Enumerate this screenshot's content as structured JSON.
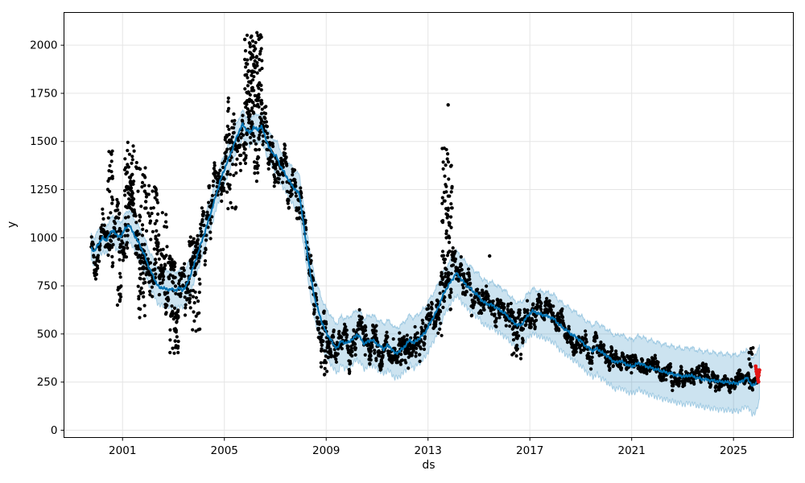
{
  "figure": {
    "xlabel": "ds",
    "ylabel": "y",
    "colors": {
      "background": "#ffffff",
      "observed_points": "#000000",
      "forecast_line": "#0072B2",
      "uncertainty_fill": "rgba(0,114,178,0.2)",
      "uncertainty_edge": "rgba(0,114,178,0.28)",
      "anomaly_points": "#e31515",
      "grid": "#e5e5e5",
      "spine": "#000000"
    }
  },
  "chart_data": {
    "type": "line",
    "description": "Prophet-style time-series forecast plot: black scatter of observed daily values y over dates ds, dark-blue forecast line, light-blue uncertainty interval, red anomaly points at the series end (~2026).",
    "title": "",
    "xlabel": "ds",
    "ylabel": "y",
    "grid": true,
    "legend": "none",
    "xlim": [
      1998.7,
      2027.35
    ],
    "ylim": [
      -38,
      2170
    ],
    "x_ticks": [
      2001,
      2005,
      2009,
      2013,
      2017,
      2021,
      2025
    ],
    "y_ticks": [
      0,
      250,
      500,
      750,
      1000,
      1250,
      1500,
      1750,
      2000
    ],
    "forecast_line": [
      [
        1999.77,
        945
      ],
      [
        1999.9,
        930
      ],
      [
        2000.05,
        965
      ],
      [
        2000.2,
        1000
      ],
      [
        2000.35,
        985
      ],
      [
        2000.5,
        1020
      ],
      [
        2000.65,
        1040
      ],
      [
        2000.8,
        1005
      ],
      [
        2000.95,
        1010
      ],
      [
        2001.1,
        1045
      ],
      [
        2001.25,
        1068
      ],
      [
        2001.4,
        1030
      ],
      [
        2001.55,
        995
      ],
      [
        2001.7,
        955
      ],
      [
        2001.85,
        915
      ],
      [
        2002.0,
        858
      ],
      [
        2002.15,
        815
      ],
      [
        2002.3,
        772
      ],
      [
        2002.45,
        738
      ],
      [
        2002.6,
        742
      ],
      [
        2002.75,
        728
      ],
      [
        2002.9,
        735
      ],
      [
        2003.05,
        725
      ],
      [
        2003.2,
        738
      ],
      [
        2003.35,
        728
      ],
      [
        2003.5,
        748
      ],
      [
        2003.65,
        800
      ],
      [
        2003.8,
        855
      ],
      [
        2003.95,
        915
      ],
      [
        2004.1,
        975
      ],
      [
        2004.25,
        1035
      ],
      [
        2004.4,
        1100
      ],
      [
        2004.55,
        1165
      ],
      [
        2004.7,
        1235
      ],
      [
        2004.85,
        1300
      ],
      [
        2005.0,
        1355
      ],
      [
        2005.15,
        1405
      ],
      [
        2005.3,
        1455
      ],
      [
        2005.45,
        1510
      ],
      [
        2005.6,
        1560
      ],
      [
        2005.72,
        1588
      ],
      [
        2005.85,
        1565
      ],
      [
        2006.0,
        1542
      ],
      [
        2006.15,
        1575
      ],
      [
        2006.3,
        1558
      ],
      [
        2006.45,
        1580
      ],
      [
        2006.6,
        1525
      ],
      [
        2006.75,
        1470
      ],
      [
        2006.9,
        1440
      ],
      [
        2007.05,
        1420
      ],
      [
        2007.2,
        1372
      ],
      [
        2007.35,
        1338
      ],
      [
        2007.5,
        1305
      ],
      [
        2007.65,
        1272
      ],
      [
        2007.8,
        1248
      ],
      [
        2007.95,
        1225
      ],
      [
        2008.1,
        1080
      ],
      [
        2008.25,
        930
      ],
      [
        2008.4,
        790
      ],
      [
        2008.55,
        685
      ],
      [
        2008.7,
        615
      ],
      [
        2008.85,
        555
      ],
      [
        2009.0,
        505
      ],
      [
        2009.15,
        478
      ],
      [
        2009.3,
        440
      ],
      [
        2009.45,
        428
      ],
      [
        2009.6,
        468
      ],
      [
        2009.75,
        448
      ],
      [
        2009.9,
        462
      ],
      [
        2010.05,
        472
      ],
      [
        2010.2,
        498
      ],
      [
        2010.35,
        478
      ],
      [
        2010.5,
        448
      ],
      [
        2010.65,
        462
      ],
      [
        2010.8,
        470
      ],
      [
        2010.95,
        452
      ],
      [
        2011.1,
        438
      ],
      [
        2011.25,
        422
      ],
      [
        2011.4,
        440
      ],
      [
        2011.55,
        428
      ],
      [
        2011.7,
        398
      ],
      [
        2011.85,
        408
      ],
      [
        2012.0,
        422
      ],
      [
        2012.15,
        448
      ],
      [
        2012.3,
        468
      ],
      [
        2012.45,
        452
      ],
      [
        2012.6,
        472
      ],
      [
        2012.75,
        488
      ],
      [
        2012.9,
        512
      ],
      [
        2013.05,
        548
      ],
      [
        2013.2,
        585
      ],
      [
        2013.35,
        622
      ],
      [
        2013.5,
        672
      ],
      [
        2013.65,
        718
      ],
      [
        2013.8,
        752
      ],
      [
        2013.95,
        782
      ],
      [
        2014.1,
        815
      ],
      [
        2014.25,
        795
      ],
      [
        2014.4,
        768
      ],
      [
        2014.55,
        748
      ],
      [
        2014.7,
        730
      ],
      [
        2014.85,
        712
      ],
      [
        2015.0,
        695
      ],
      [
        2015.15,
        668
      ],
      [
        2015.3,
        658
      ],
      [
        2015.45,
        652
      ],
      [
        2015.6,
        645
      ],
      [
        2015.75,
        628
      ],
      [
        2015.9,
        618
      ],
      [
        2016.05,
        602
      ],
      [
        2016.2,
        582
      ],
      [
        2016.35,
        560
      ],
      [
        2016.5,
        548
      ],
      [
        2016.65,
        545
      ],
      [
        2016.8,
        572
      ],
      [
        2016.95,
        600
      ],
      [
        2017.1,
        618
      ],
      [
        2017.25,
        612
      ],
      [
        2017.4,
        602
      ],
      [
        2017.55,
        598
      ],
      [
        2017.7,
        592
      ],
      [
        2017.85,
        585
      ],
      [
        2018.0,
        572
      ],
      [
        2018.15,
        548
      ],
      [
        2018.3,
        532
      ],
      [
        2018.45,
        518
      ],
      [
        2018.6,
        502
      ],
      [
        2018.75,
        488
      ],
      [
        2018.9,
        475
      ],
      [
        2019.05,
        458
      ],
      [
        2019.2,
        438
      ],
      [
        2019.35,
        422
      ],
      [
        2019.5,
        412
      ],
      [
        2019.65,
        425
      ],
      [
        2019.8,
        405
      ],
      [
        2019.95,
        395
      ],
      [
        2020.1,
        378
      ],
      [
        2020.25,
        362
      ],
      [
        2020.4,
        350
      ],
      [
        2020.55,
        362
      ],
      [
        2020.7,
        348
      ],
      [
        2020.85,
        338
      ],
      [
        2021.0,
        330
      ],
      [
        2021.15,
        340
      ],
      [
        2021.3,
        350
      ],
      [
        2021.45,
        340
      ],
      [
        2021.6,
        330
      ],
      [
        2021.75,
        325
      ],
      [
        2021.9,
        318
      ],
      [
        2022.05,
        312
      ],
      [
        2022.2,
        306
      ],
      [
        2022.35,
        300
      ],
      [
        2022.5,
        296
      ],
      [
        2022.65,
        290
      ],
      [
        2022.8,
        286
      ],
      [
        2022.95,
        282
      ],
      [
        2023.1,
        278
      ],
      [
        2023.25,
        286
      ],
      [
        2023.4,
        280
      ],
      [
        2023.55,
        272
      ],
      [
        2023.7,
        268
      ],
      [
        2023.85,
        264
      ],
      [
        2024.0,
        262
      ],
      [
        2024.15,
        258
      ],
      [
        2024.3,
        256
      ],
      [
        2024.45,
        253
      ],
      [
        2024.6,
        251
      ],
      [
        2024.75,
        249
      ],
      [
        2024.9,
        247
      ],
      [
        2025.05,
        244
      ],
      [
        2025.2,
        246
      ],
      [
        2025.35,
        255
      ],
      [
        2025.5,
        275
      ],
      [
        2025.62,
        252
      ],
      [
        2025.75,
        232
      ],
      [
        2025.88,
        238
      ],
      [
        2026.02,
        305
      ]
    ],
    "uncertainty_halfwidth": [
      [
        1999.77,
        70
      ],
      [
        2001.0,
        75
      ],
      [
        2002.0,
        90
      ],
      [
        2003.0,
        95
      ],
      [
        2004.0,
        85
      ],
      [
        2005.0,
        75
      ],
      [
        2006.0,
        68
      ],
      [
        2007.0,
        80
      ],
      [
        2008.0,
        100
      ],
      [
        2009.0,
        125
      ],
      [
        2010.0,
        130
      ],
      [
        2012.0,
        130
      ],
      [
        2013.0,
        130
      ],
      [
        2013.8,
        115
      ],
      [
        2015.0,
        115
      ],
      [
        2016.0,
        120
      ],
      [
        2017.0,
        115
      ],
      [
        2018.0,
        125
      ],
      [
        2019.0,
        130
      ],
      [
        2020.0,
        138
      ],
      [
        2021.0,
        140
      ],
      [
        2022.0,
        142
      ],
      [
        2023.0,
        144
      ],
      [
        2024.0,
        145
      ],
      [
        2025.0,
        146
      ],
      [
        2026.07,
        148
      ]
    ],
    "observed_scatter": {
      "t_start": 1999.77,
      "t_end": 2025.97,
      "sample_step_years": 0.01,
      "noise_sigma": [
        [
          1999.77,
          80
        ],
        [
          2000.5,
          85
        ],
        [
          2001.2,
          95
        ],
        [
          2002.2,
          105
        ],
        [
          2003.2,
          105
        ],
        [
          2004.2,
          100
        ],
        [
          2005.2,
          100
        ],
        [
          2006.2,
          110
        ],
        [
          2007.2,
          90
        ],
        [
          2008.2,
          75
        ],
        [
          2009.0,
          60
        ],
        [
          2010.0,
          55
        ],
        [
          2012.0,
          55
        ],
        [
          2013.2,
          60
        ],
        [
          2013.8,
          85
        ],
        [
          2014.4,
          70
        ],
        [
          2015.2,
          55
        ],
        [
          2016.5,
          55
        ],
        [
          2017.5,
          50
        ],
        [
          2018.5,
          45
        ],
        [
          2019.5,
          42
        ],
        [
          2020.5,
          40
        ],
        [
          2021.5,
          36
        ],
        [
          2022.5,
          33
        ],
        [
          2023.5,
          30
        ],
        [
          2024.5,
          28
        ],
        [
          2026.02,
          28
        ]
      ],
      "upward_spike_clusters": [
        [
          2000.42,
          2000.62,
          1450,
          20
        ],
        [
          2001.08,
          2001.5,
          1495,
          48
        ],
        [
          2001.5,
          2001.95,
          1390,
          30
        ],
        [
          2002.0,
          2002.45,
          1270,
          32
        ],
        [
          2002.5,
          2002.8,
          1130,
          18
        ],
        [
          2003.6,
          2003.98,
          1010,
          20
        ],
        [
          2005.8,
          2006.48,
          2065,
          115
        ],
        [
          2013.55,
          2013.95,
          1465,
          60
        ],
        [
          2025.6,
          2025.78,
          428,
          9
        ]
      ],
      "downward_spike_clusters": [
        [
          2000.8,
          2001.0,
          650,
          16
        ],
        [
          2001.6,
          2001.95,
          585,
          22
        ],
        [
          2002.85,
          2003.2,
          400,
          32
        ],
        [
          2003.75,
          2004.05,
          515,
          18
        ],
        [
          2005.1,
          2005.5,
          1150,
          14
        ],
        [
          2008.78,
          2009.05,
          288,
          16
        ],
        [
          2010.5,
          2011.2,
          335,
          16
        ],
        [
          2011.9,
          2012.35,
          322,
          14
        ],
        [
          2013.3,
          2013.6,
          492,
          10
        ],
        [
          2016.3,
          2016.65,
          372,
          14
        ]
      ],
      "outlier_points": [
        [
          2013.79,
          1690
        ],
        [
          2015.42,
          905
        ]
      ]
    },
    "anomaly_points_red": [
      [
        2025.87,
        332
      ],
      [
        2025.89,
        318
      ],
      [
        2025.9,
        305
      ],
      [
        2025.92,
        292
      ],
      [
        2025.94,
        278
      ],
      [
        2025.96,
        264
      ],
      [
        2025.98,
        252
      ],
      [
        2025.99,
        285
      ],
      [
        2026.0,
        300
      ],
      [
        2026.02,
        312
      ]
    ]
  }
}
